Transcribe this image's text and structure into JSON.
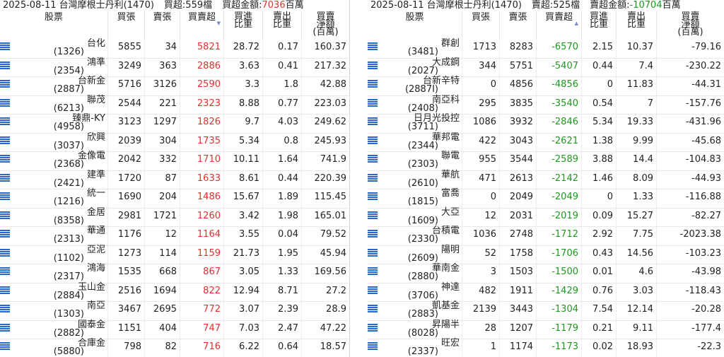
{
  "colors": {
    "positive": "#e03030",
    "negative": "#1a9a1a",
    "icon": "#2a66d0"
  },
  "left": {
    "header": {
      "date_broker": "2025-08-11 台灣摩根士丹利(1470)",
      "count": "買超:559檔",
      "amount_label": "買超金額:",
      "amount_value": "7036",
      "amount_unit": "百萬"
    },
    "columns": {
      "stock": "股票",
      "buy": "買張",
      "sell": "賣張",
      "net": "買賣超",
      "net_arrow": "▼",
      "buy_ratio_1": "買進",
      "buy_ratio_2": "比重",
      "sell_ratio_1": "賣出",
      "sell_ratio_2": "比重",
      "amount_1": "買賣",
      "amount_2": "淨額",
      "amount_3": "(百萬)"
    },
    "rows": [
      {
        "name": "台化",
        "code": "(1326)",
        "buy": "5855",
        "sell": "34",
        "net": "5821",
        "buy_ratio": "28.72",
        "sell_ratio": "0.17",
        "amount": "160.37"
      },
      {
        "name": "鴻準",
        "code": "(2354)",
        "buy": "3249",
        "sell": "363",
        "net": "2886",
        "buy_ratio": "3.63",
        "sell_ratio": "0.41",
        "amount": "217.32"
      },
      {
        "name": "台新金",
        "code": "(2887)",
        "buy": "5716",
        "sell": "3126",
        "net": "2590",
        "buy_ratio": "3.3",
        "sell_ratio": "1.8",
        "amount": "42.88"
      },
      {
        "name": "聯茂",
        "code": "(6213)",
        "buy": "2544",
        "sell": "221",
        "net": "2323",
        "buy_ratio": "8.88",
        "sell_ratio": "0.77",
        "amount": "223.03"
      },
      {
        "name": "臻鼎-KY",
        "code": "(4958)",
        "buy": "3123",
        "sell": "1297",
        "net": "1826",
        "buy_ratio": "9.7",
        "sell_ratio": "4.03",
        "amount": "249.62"
      },
      {
        "name": "欣興",
        "code": "(3037)",
        "buy": "2039",
        "sell": "304",
        "net": "1735",
        "buy_ratio": "5.34",
        "sell_ratio": "0.8",
        "amount": "245.93"
      },
      {
        "name": "金像電",
        "code": "(2368)",
        "buy": "2042",
        "sell": "332",
        "net": "1710",
        "buy_ratio": "10.11",
        "sell_ratio": "1.64",
        "amount": "741.9"
      },
      {
        "name": "建準",
        "code": "(2421)",
        "buy": "1720",
        "sell": "87",
        "net": "1633",
        "buy_ratio": "8.61",
        "sell_ratio": "0.44",
        "amount": "220.39"
      },
      {
        "name": "統一",
        "code": "(1216)",
        "buy": "1690",
        "sell": "204",
        "net": "1486",
        "buy_ratio": "15.67",
        "sell_ratio": "1.89",
        "amount": "115.45"
      },
      {
        "name": "金居",
        "code": "(8358)",
        "buy": "2981",
        "sell": "1721",
        "net": "1260",
        "buy_ratio": "3.42",
        "sell_ratio": "1.98",
        "amount": "165.01"
      },
      {
        "name": "華通",
        "code": "(2313)",
        "buy": "1176",
        "sell": "12",
        "net": "1164",
        "buy_ratio": "3.55",
        "sell_ratio": "0.04",
        "amount": "79.52"
      },
      {
        "name": "亞泥",
        "code": "(1102)",
        "buy": "1273",
        "sell": "114",
        "net": "1159",
        "buy_ratio": "21.73",
        "sell_ratio": "1.95",
        "amount": "45.94"
      },
      {
        "name": "鴻海",
        "code": "(2317)",
        "buy": "1535",
        "sell": "668",
        "net": "867",
        "buy_ratio": "3.05",
        "sell_ratio": "1.33",
        "amount": "169.56"
      },
      {
        "name": "玉山金",
        "code": "(2884)",
        "buy": "2516",
        "sell": "1694",
        "net": "822",
        "buy_ratio": "12.94",
        "sell_ratio": "8.71",
        "amount": "27.2"
      },
      {
        "name": "南亞",
        "code": "(1303)",
        "buy": "3467",
        "sell": "2695",
        "net": "772",
        "buy_ratio": "3.07",
        "sell_ratio": "2.39",
        "amount": "28.9"
      },
      {
        "name": "國泰金",
        "code": "(2882)",
        "buy": "1151",
        "sell": "404",
        "net": "747",
        "buy_ratio": "7.03",
        "sell_ratio": "2.47",
        "amount": "47.22"
      },
      {
        "name": "合庫金",
        "code": "(5880)",
        "buy": "798",
        "sell": "82",
        "net": "716",
        "buy_ratio": "6.22",
        "sell_ratio": "0.64",
        "amount": "18.57"
      }
    ]
  },
  "right": {
    "header": {
      "date_broker": "2025-08-11 台灣摩根士丹利(1470)",
      "count": "賣超:525檔",
      "amount_label": "賣超金額:",
      "amount_value": "-10704",
      "amount_unit": "百萬"
    },
    "columns": {
      "stock": "股票",
      "buy": "買張",
      "sell": "賣張",
      "net": "買賣超",
      "net_arrow": "▲",
      "buy_ratio_1": "買進",
      "buy_ratio_2": "比重",
      "sell_ratio_1": "賣出",
      "sell_ratio_2": "比重",
      "amount_1": "買賣",
      "amount_2": "淨額",
      "amount_3": "(百萬)"
    },
    "rows": [
      {
        "name": "群創",
        "code": "(3481)",
        "buy": "1713",
        "sell": "8283",
        "net": "-6570",
        "buy_ratio": "2.15",
        "sell_ratio": "10.37",
        "amount": "-79.16"
      },
      {
        "name": "大成鋼",
        "code": "(2027)",
        "buy": "344",
        "sell": "5751",
        "net": "-5407",
        "buy_ratio": "0.44",
        "sell_ratio": "7.4",
        "amount": "-230.22"
      },
      {
        "name": "台新辛特",
        "code": "(2887I)",
        "buy": "0",
        "sell": "4856",
        "net": "-4856",
        "buy_ratio": "0",
        "sell_ratio": "11.83",
        "amount": "-44.31"
      },
      {
        "name": "南亞科",
        "code": "(2408)",
        "buy": "295",
        "sell": "3835",
        "net": "-3540",
        "buy_ratio": "0.54",
        "sell_ratio": "7",
        "amount": "-157.76"
      },
      {
        "name": "日月光投控",
        "code": "(3711)",
        "buy": "1086",
        "sell": "3932",
        "net": "-2846",
        "buy_ratio": "5.34",
        "sell_ratio": "19.33",
        "amount": "-431.96"
      },
      {
        "name": "華邦電",
        "code": "(2344)",
        "buy": "422",
        "sell": "3043",
        "net": "-2621",
        "buy_ratio": "1.38",
        "sell_ratio": "9.99",
        "amount": "-45.68"
      },
      {
        "name": "聯電",
        "code": "(2303)",
        "buy": "955",
        "sell": "3544",
        "net": "-2589",
        "buy_ratio": "3.88",
        "sell_ratio": "14.4",
        "amount": "-104.83"
      },
      {
        "name": "華航",
        "code": "(2610)",
        "buy": "471",
        "sell": "2613",
        "net": "-2142",
        "buy_ratio": "1.46",
        "sell_ratio": "8.09",
        "amount": "-44.93"
      },
      {
        "name": "富喬",
        "code": "(1815)",
        "buy": "0",
        "sell": "2049",
        "net": "-2049",
        "buy_ratio": "0",
        "sell_ratio": "1.33",
        "amount": "-116.88"
      },
      {
        "name": "大亞",
        "code": "(1609)",
        "buy": "12",
        "sell": "2031",
        "net": "-2019",
        "buy_ratio": "0.09",
        "sell_ratio": "15.27",
        "amount": "-82.27"
      },
      {
        "name": "台積電",
        "code": "(2330)",
        "buy": "1036",
        "sell": "2748",
        "net": "-1712",
        "buy_ratio": "2.92",
        "sell_ratio": "7.75",
        "amount": "-2023.38"
      },
      {
        "name": "陽明",
        "code": "(2609)",
        "buy": "52",
        "sell": "1758",
        "net": "-1706",
        "buy_ratio": "0.43",
        "sell_ratio": "14.56",
        "amount": "-103.23"
      },
      {
        "name": "華南金",
        "code": "(2880)",
        "buy": "3",
        "sell": "1503",
        "net": "-1500",
        "buy_ratio": "0.01",
        "sell_ratio": "4.6",
        "amount": "-43.98"
      },
      {
        "name": "神達",
        "code": "(3706)",
        "buy": "482",
        "sell": "1911",
        "net": "-1429",
        "buy_ratio": "0.76",
        "sell_ratio": "3.03",
        "amount": "-118.43"
      },
      {
        "name": "凱基金",
        "code": "(2883)",
        "buy": "2139",
        "sell": "3443",
        "net": "-1304",
        "buy_ratio": "7.54",
        "sell_ratio": "12.14",
        "amount": "-20.28"
      },
      {
        "name": "昇陽半",
        "code": "(8028)",
        "buy": "28",
        "sell": "1207",
        "net": "-1179",
        "buy_ratio": "0.21",
        "sell_ratio": "9.11",
        "amount": "-177.4"
      },
      {
        "name": "旺宏",
        "code": "(2337)",
        "buy": "1",
        "sell": "1174",
        "net": "-1173",
        "buy_ratio": "0.02",
        "sell_ratio": "18.93",
        "amount": "-22.3"
      }
    ]
  }
}
